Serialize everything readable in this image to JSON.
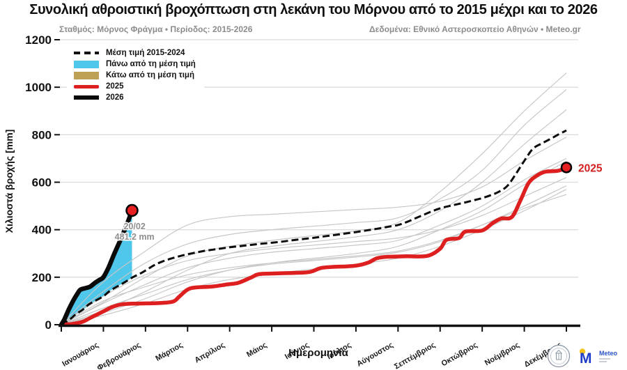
{
  "header": {
    "title": "Συνολική αθροιστική βροχόπτωση στη λεκάνη του Μόρνου από το 2015 μέχρι και το 2026",
    "subtitle_left": "Σταθμός: Μόρνος Φράγμα • Περίοδος: 2015-2026",
    "subtitle_right": "Δεδομένα: Εθνικό Αστεροσκοπείο Αθηνών • Meteo.gr"
  },
  "legend": {
    "items": [
      {
        "label": "Μέση τιμή 2015-2024",
        "swatch": "dashed-line",
        "color": "#111111"
      },
      {
        "label": "Πάνω από τη μέση τιμή",
        "swatch": "fill",
        "color": "#4fc7ea"
      },
      {
        "label": "Κάτω από τη μέση τιμή",
        "swatch": "fill",
        "color": "#bda055"
      },
      {
        "label": "2025",
        "swatch": "line",
        "color": "#de1f1f"
      },
      {
        "label": "2026",
        "swatch": "line",
        "color": "#0a0a0a"
      }
    ]
  },
  "colors": {
    "grid": "#dcdcdc",
    "year_lines": "#c6c6c6",
    "mean": "#0d0d0d",
    "red": "#de1f1f",
    "black": "#0a0a0a",
    "cyan": "#4fc7ea",
    "tan": "#bda055",
    "annotation": "#8f8f8f",
    "axis": "#111111"
  },
  "logos": {
    "meteo_label": "Meteo"
  },
  "chart_data": {
    "type": "line",
    "title": "Συνολική αθροιστική βροχόπτωση στη λεκάνη του Μόρνου από το 2015 μέχρι και το 2026",
    "xlabel": "Ημερομηνία",
    "ylabel": "Χιλιοστά βροχής [mm]",
    "unit": "mm",
    "ylim": [
      0,
      1200
    ],
    "y_ticks": [
      0,
      200,
      400,
      600,
      800,
      1000,
      1200
    ],
    "grid": "horizontal",
    "legend_position": "upper-left",
    "months": [
      "Ιανουάριος",
      "Φεβρουάριος",
      "Μάρτιος",
      "Απρίλιος",
      "Μάιος",
      "Ιούνιος",
      "Ιούλιος",
      "Αύγουστος",
      "Σεπτέμβριος",
      "Οκτώβριος",
      "Νοέμβριος",
      "Δεκέμβριος"
    ],
    "mean_2015_2024": {
      "name": "Μέση τιμή 2015-2024",
      "points": [
        [
          0,
          0
        ],
        [
          0.2,
          22
        ],
        [
          0.35,
          45
        ],
        [
          0.5,
          62
        ],
        [
          0.65,
          85
        ],
        [
          0.8,
          100
        ],
        [
          1,
          120
        ],
        [
          1.15,
          142
        ],
        [
          1.3,
          158
        ],
        [
          1.5,
          178
        ],
        [
          1.7,
          200
        ],
        [
          1.85,
          213
        ],
        [
          2,
          228
        ],
        [
          2.2,
          250
        ],
        [
          2.4,
          266
        ],
        [
          2.6,
          278
        ],
        [
          2.8,
          288
        ],
        [
          3,
          297
        ],
        [
          3.2,
          304
        ],
        [
          3.4,
          311
        ],
        [
          3.6,
          316
        ],
        [
          3.8,
          321
        ],
        [
          4,
          326
        ],
        [
          4.25,
          331
        ],
        [
          4.5,
          336
        ],
        [
          4.75,
          341
        ],
        [
          5,
          345
        ],
        [
          5.25,
          350
        ],
        [
          5.5,
          356
        ],
        [
          5.75,
          361
        ],
        [
          6,
          366
        ],
        [
          6.25,
          372
        ],
        [
          6.5,
          378
        ],
        [
          6.75,
          384
        ],
        [
          7,
          390
        ],
        [
          7.25,
          397
        ],
        [
          7.5,
          404
        ],
        [
          7.75,
          412
        ],
        [
          8,
          420
        ],
        [
          8.2,
          432
        ],
        [
          8.4,
          447
        ],
        [
          8.6,
          462
        ],
        [
          8.8,
          477
        ],
        [
          9,
          490
        ],
        [
          9.2,
          499
        ],
        [
          9.4,
          507
        ],
        [
          9.6,
          515
        ],
        [
          9.8,
          524
        ],
        [
          10,
          533
        ],
        [
          10.2,
          545
        ],
        [
          10.4,
          560
        ],
        [
          10.6,
          585
        ],
        [
          10.8,
          635
        ],
        [
          11,
          690
        ],
        [
          11.2,
          740
        ],
        [
          11.4,
          762
        ],
        [
          11.6,
          780
        ],
        [
          11.8,
          800
        ],
        [
          12,
          818
        ]
      ]
    },
    "year_2025": {
      "name": "2025",
      "end_label": "2025",
      "end_value_mm": 662,
      "points": [
        [
          0,
          0
        ],
        [
          0.25,
          3
        ],
        [
          0.5,
          12
        ],
        [
          0.7,
          30
        ],
        [
          1,
          56
        ],
        [
          1.2,
          74
        ],
        [
          1.45,
          86
        ],
        [
          1.8,
          89
        ],
        [
          2.3,
          91
        ],
        [
          2.65,
          97
        ],
        [
          2.8,
          118
        ],
        [
          3,
          148
        ],
        [
          3.2,
          157
        ],
        [
          3.6,
          161
        ],
        [
          3.95,
          170
        ],
        [
          4.2,
          176
        ],
        [
          4.5,
          198
        ],
        [
          4.7,
          213
        ],
        [
          5.1,
          216
        ],
        [
          5.5,
          218
        ],
        [
          5.9,
          222
        ],
        [
          6.15,
          238
        ],
        [
          6.4,
          243
        ],
        [
          6.8,
          246
        ],
        [
          7.05,
          250
        ],
        [
          7.3,
          262
        ],
        [
          7.5,
          280
        ],
        [
          7.75,
          286
        ],
        [
          8.2,
          288
        ],
        [
          8.7,
          290
        ],
        [
          9,
          320
        ],
        [
          9.15,
          357
        ],
        [
          9.45,
          365
        ],
        [
          9.6,
          392
        ],
        [
          10,
          397
        ],
        [
          10.25,
          428
        ],
        [
          10.45,
          447
        ],
        [
          10.7,
          453
        ],
        [
          10.9,
          520
        ],
        [
          11.1,
          596
        ],
        [
          11.3,
          628
        ],
        [
          11.5,
          644
        ],
        [
          11.8,
          648
        ],
        [
          12,
          662
        ]
      ]
    },
    "year_2026": {
      "name": "2026",
      "end_value_mm": 481.2,
      "end_date": "20/02",
      "points": [
        [
          0,
          0
        ],
        [
          0.08,
          25
        ],
        [
          0.18,
          65
        ],
        [
          0.28,
          100
        ],
        [
          0.38,
          130
        ],
        [
          0.45,
          147
        ],
        [
          0.55,
          153
        ],
        [
          0.68,
          160
        ],
        [
          0.8,
          176
        ],
        [
          0.9,
          188
        ],
        [
          1,
          200
        ],
        [
          1.12,
          240
        ],
        [
          1.25,
          295
        ],
        [
          1.4,
          355
        ],
        [
          1.52,
          405
        ],
        [
          1.6,
          442
        ],
        [
          1.68,
          481.2
        ]
      ]
    },
    "background_years_2015_2024": [
      [
        0,
        95,
        200,
        290,
        330,
        355,
        375,
        395,
        430,
        560,
        720,
        900,
        1060
      ],
      [
        0,
        140,
        260,
        340,
        380,
        400,
        415,
        430,
        450,
        530,
        650,
        840,
        990
      ],
      [
        0,
        60,
        140,
        230,
        300,
        330,
        350,
        370,
        400,
        480,
        600,
        760,
        905
      ],
      [
        0,
        180,
        310,
        420,
        455,
        465,
        475,
        485,
        495,
        520,
        580,
        690,
        790
      ],
      [
        0,
        90,
        170,
        240,
        280,
        305,
        320,
        335,
        355,
        420,
        500,
        610,
        700
      ],
      [
        0,
        50,
        110,
        180,
        230,
        260,
        280,
        300,
        330,
        400,
        480,
        590,
        688
      ],
      [
        0,
        120,
        210,
        270,
        300,
        320,
        335,
        350,
        365,
        400,
        460,
        540,
        620
      ],
      [
        0,
        70,
        130,
        190,
        230,
        255,
        270,
        285,
        305,
        350,
        420,
        500,
        585
      ],
      [
        0,
        40,
        90,
        150,
        190,
        215,
        235,
        255,
        280,
        330,
        400,
        480,
        570
      ],
      [
        0,
        100,
        160,
        210,
        240,
        260,
        275,
        290,
        310,
        355,
        420,
        490,
        548
      ]
    ],
    "fill_above_mean": {
      "label": "Πάνω από τη μέση τιμή",
      "color": "#4fc7ea",
      "from_month": 0,
      "to_month": 1.68
    },
    "fill_below_mean": {
      "label": "Κάτω από τη μέση τιμή",
      "color": "#bda055",
      "visible": false
    },
    "annotation": {
      "month": 1.74,
      "baseline_mm": 402,
      "lines": [
        "20/02",
        "481.2 mm"
      ]
    }
  }
}
